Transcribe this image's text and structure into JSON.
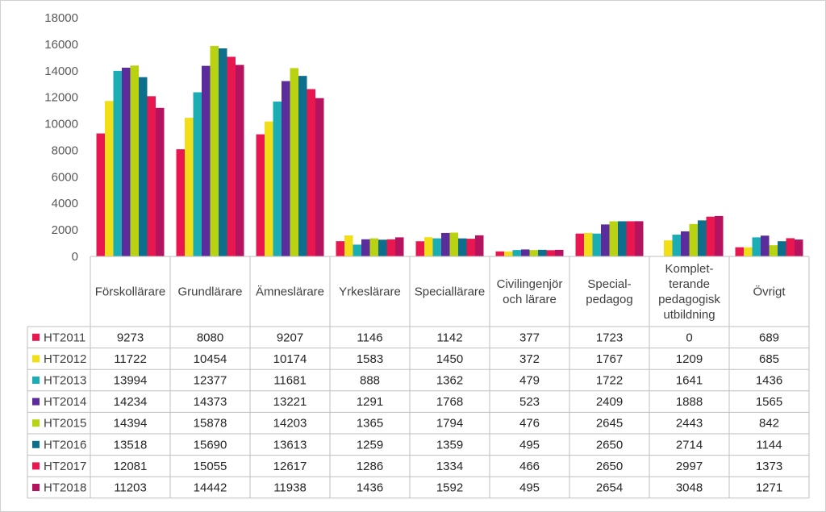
{
  "chart_data": {
    "type": "bar",
    "title": "",
    "xlabel": "",
    "ylabel": "",
    "ylim": [
      0,
      18000
    ],
    "yticks": [
      "0",
      "2000",
      "4000",
      "6000",
      "8000",
      "10000",
      "12000",
      "14000",
      "16000",
      "18000"
    ],
    "grid": false,
    "legend": "data-table",
    "categories": [
      [
        "Förskollärare"
      ],
      [
        "Grundlärare"
      ],
      [
        "Ämneslärare"
      ],
      [
        "Yrkeslärare"
      ],
      [
        "Speciallärare"
      ],
      [
        "Civilingenjör",
        "och lärare"
      ],
      [
        "Special-",
        "pedagog"
      ],
      [
        "Komplet-",
        "terande",
        "pedagogisk",
        "utbildning"
      ],
      [
        "Övrigt"
      ]
    ],
    "series": [
      {
        "name": "HT2011",
        "color": "#E8174F",
        "values": [
          9273,
          8080,
          9207,
          1146,
          1142,
          377,
          1723,
          0,
          689
        ]
      },
      {
        "name": "HT2012",
        "color": "#F2DE18",
        "values": [
          11722,
          10454,
          10174,
          1583,
          1450,
          372,
          1767,
          1209,
          685
        ]
      },
      {
        "name": "HT2013",
        "color": "#1BADB4",
        "values": [
          13994,
          12377,
          11681,
          888,
          1362,
          479,
          1722,
          1641,
          1436
        ]
      },
      {
        "name": "HT2014",
        "color": "#5B2C9C",
        "values": [
          14234,
          14373,
          13221,
          1291,
          1768,
          523,
          2409,
          1888,
          1565
        ]
      },
      {
        "name": "HT2015",
        "color": "#B9D313",
        "values": [
          14394,
          15878,
          14203,
          1365,
          1794,
          476,
          2645,
          2443,
          842
        ]
      },
      {
        "name": "HT2016",
        "color": "#0D6F8B",
        "values": [
          13518,
          15690,
          13613,
          1259,
          1359,
          495,
          2650,
          2714,
          1144
        ]
      },
      {
        "name": "HT2017",
        "color": "#E8174F",
        "values": [
          12081,
          15055,
          12617,
          1286,
          1334,
          466,
          2650,
          2997,
          1373
        ]
      },
      {
        "name": "HT2018",
        "color": "#B5125F",
        "values": [
          11203,
          14442,
          11938,
          1436,
          1592,
          495,
          2654,
          3048,
          1271
        ]
      }
    ]
  }
}
